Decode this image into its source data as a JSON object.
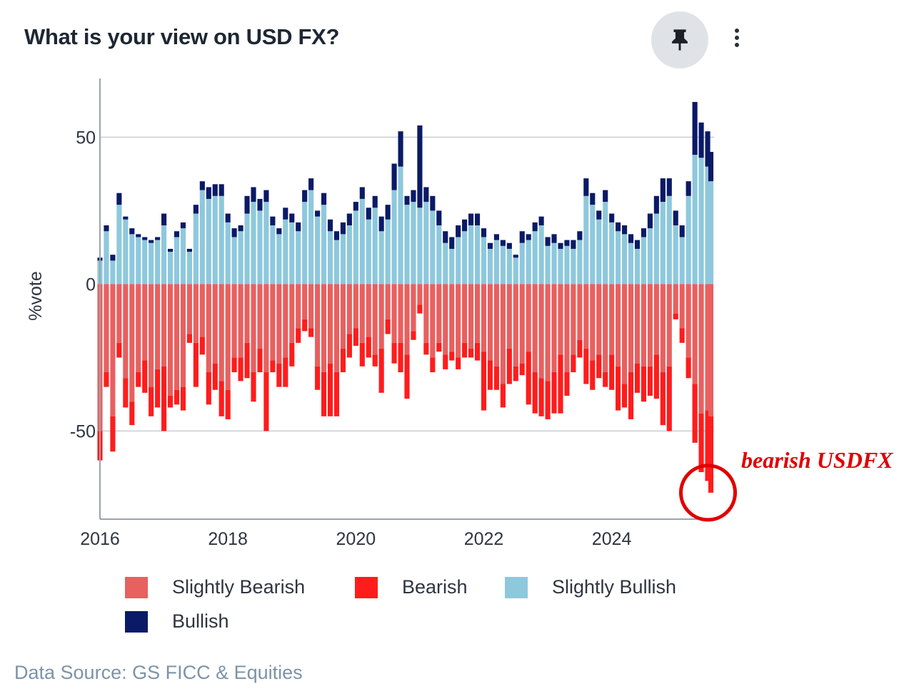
{
  "header": {
    "title": "What is your view on USD FX?"
  },
  "chart_data": {
    "type": "bar",
    "stacked": true,
    "ylabel": "%vote",
    "ylim": [
      -80,
      70
    ],
    "xlim": [
      2016,
      2025.6
    ],
    "yticks": [
      "50",
      "0",
      "-50"
    ],
    "xticks": [
      "2016",
      "2018",
      "2020",
      "2022",
      "2024"
    ],
    "grid": true,
    "legend_position": "bottom",
    "annotation": {
      "text": "bearish USDFX",
      "color": "#e00000",
      "target_x": 2025.55,
      "target_y": -71
    },
    "colors": {
      "slightly_bearish": "#e8605f",
      "bearish": "#ff1c1c",
      "slightly_bullish": "#8ec8dc",
      "bullish": "#0b1a66"
    },
    "series_names": [
      "Slightly Bearish",
      "Bearish",
      "Slightly Bullish",
      "Bullish"
    ],
    "dates": [
      2016.0,
      2016.1,
      2016.2,
      2016.3,
      2016.4,
      2016.5,
      2016.6,
      2016.7,
      2016.8,
      2016.9,
      2017.0,
      2017.1,
      2017.2,
      2017.3,
      2017.4,
      2017.5,
      2017.6,
      2017.7,
      2017.8,
      2017.9,
      2018.0,
      2018.1,
      2018.2,
      2018.3,
      2018.4,
      2018.5,
      2018.6,
      2018.7,
      2018.8,
      2018.9,
      2019.0,
      2019.1,
      2019.2,
      2019.3,
      2019.4,
      2019.5,
      2019.6,
      2019.7,
      2019.8,
      2019.9,
      2020.0,
      2020.1,
      2020.2,
      2020.3,
      2020.4,
      2020.5,
      2020.6,
      2020.7,
      2020.8,
      2020.9,
      2021.0,
      2021.1,
      2021.2,
      2021.3,
      2021.4,
      2021.5,
      2021.6,
      2021.7,
      2021.8,
      2021.9,
      2022.0,
      2022.1,
      2022.2,
      2022.3,
      2022.4,
      2022.5,
      2022.6,
      2022.7,
      2022.8,
      2022.9,
      2023.0,
      2023.1,
      2023.2,
      2023.3,
      2023.4,
      2023.5,
      2023.6,
      2023.7,
      2023.8,
      2023.9,
      2024.0,
      2024.1,
      2024.2,
      2024.3,
      2024.4,
      2024.5,
      2024.6,
      2024.7,
      2024.8,
      2024.9,
      2025.0,
      2025.1,
      2025.2,
      2025.3,
      2025.4,
      2025.5,
      2025.55
    ],
    "slightly_bullish": [
      8,
      18,
      8,
      27,
      22,
      17,
      16,
      15,
      14,
      15,
      20,
      11,
      16,
      19,
      11,
      24,
      32,
      29,
      30,
      30,
      21,
      16,
      18,
      24,
      28,
      25,
      28,
      20,
      17,
      22,
      21,
      18,
      28,
      32,
      23,
      27,
      18,
      15,
      17,
      20,
      25,
      29,
      22,
      26,
      18,
      22,
      32,
      40,
      27,
      28,
      26,
      28,
      25,
      20,
      14,
      12,
      16,
      18,
      20,
      20,
      16,
      12,
      15,
      13,
      12,
      9,
      14,
      15,
      18,
      20,
      13,
      14,
      12,
      13,
      12,
      15,
      30,
      27,
      22,
      28,
      21,
      18,
      17,
      14,
      12,
      16,
      19,
      24,
      28,
      30,
      20,
      16,
      30,
      44,
      43,
      40,
      35
    ],
    "bullish": [
      1,
      2,
      2,
      4,
      1,
      2,
      1,
      1,
      1,
      1,
      4,
      1,
      2,
      2,
      1,
      3,
      3,
      4,
      4,
      4,
      3,
      3,
      2,
      6,
      5,
      4,
      4,
      3,
      2,
      4,
      3,
      3,
      4,
      4,
      2,
      4,
      4,
      3,
      4,
      4,
      3,
      4,
      4,
      4,
      5,
      5,
      9,
      12,
      3,
      4,
      28,
      5,
      5,
      5,
      4,
      4,
      4,
      4,
      4,
      4,
      3,
      2,
      2,
      2,
      2,
      1,
      4,
      2,
      3,
      3,
      3,
      3,
      2,
      2,
      3,
      3,
      6,
      4,
      3,
      4,
      3,
      3,
      3,
      3,
      3,
      3,
      5,
      6,
      8,
      6,
      5,
      4,
      5,
      18,
      12,
      12,
      10
    ],
    "slightly_bearish": [
      -50,
      -30,
      -45,
      -20,
      -32,
      -40,
      -30,
      -26,
      -35,
      -29,
      -28,
      -38,
      -36,
      -35,
      -17,
      -20,
      -18,
      -30,
      -27,
      -33,
      -36,
      -25,
      -25,
      -20,
      -30,
      -22,
      -30,
      -26,
      -27,
      -25,
      -20,
      -15,
      -12,
      -15,
      -28,
      -30,
      -27,
      -30,
      -22,
      -17,
      -15,
      -20,
      -18,
      -24,
      -22,
      -12,
      -20,
      -20,
      -24,
      -16,
      -7,
      -20,
      -25,
      -20,
      -24,
      -23,
      -25,
      -20,
      -22,
      -20,
      -23,
      -26,
      -28,
      -34,
      -22,
      -28,
      -27,
      -23,
      -30,
      -32,
      -33,
      -30,
      -24,
      -30,
      -24,
      -19,
      -22,
      -26,
      -24,
      -30,
      -24,
      -28,
      -34,
      -30,
      -27,
      -28,
      -28,
      -24,
      -30,
      -28,
      -10,
      -15,
      -25,
      -34,
      -44,
      -43,
      -45
    ],
    "bearish": [
      -10,
      -5,
      -12,
      -5,
      -10,
      -8,
      -5,
      -11,
      -10,
      -13,
      -22,
      -4,
      -5,
      -8,
      -3,
      -15,
      -6,
      -11,
      -9,
      -12,
      -10,
      -5,
      -8,
      -12,
      -10,
      -8,
      -20,
      -4,
      -8,
      -10,
      -8,
      -5,
      -4,
      -3,
      -8,
      -15,
      -18,
      -15,
      -8,
      -8,
      -6,
      -8,
      -7,
      -4,
      -15,
      -5,
      -7,
      -10,
      -15,
      -3,
      -3,
      -4,
      -5,
      -3,
      -5,
      -3,
      -4,
      -5,
      -3,
      -6,
      -20,
      -10,
      -8,
      -8,
      -12,
      -5,
      -4,
      -18,
      -14,
      -13,
      -13,
      -14,
      -20,
      -8,
      -6,
      -6,
      -12,
      -10,
      -8,
      -5,
      -12,
      -15,
      -8,
      -16,
      -10,
      -12,
      -10,
      -15,
      -18,
      -22,
      -2,
      -5,
      -7,
      -20,
      -20,
      -24,
      -26
    ]
  },
  "legend": {
    "items": [
      {
        "label": "Slightly Bearish",
        "color": "#e8605f"
      },
      {
        "label": "Bearish",
        "color": "#ff1c1c"
      },
      {
        "label": "Slightly Bullish",
        "color": "#8ec8dc"
      },
      {
        "label": "Bullish",
        "color": "#0b1a66"
      }
    ]
  },
  "footer": {
    "source": "Data Source: GS FICC & Equities"
  },
  "icons": {
    "pin": "pin-icon",
    "more": "more-vertical-icon"
  }
}
